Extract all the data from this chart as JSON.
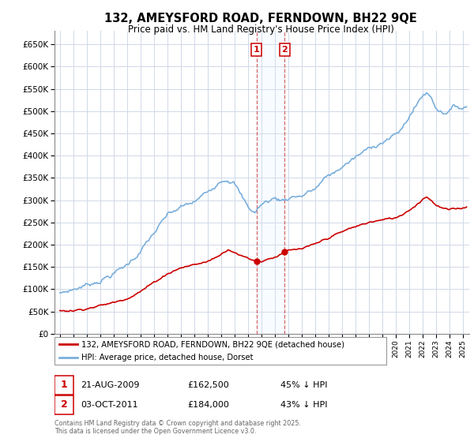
{
  "title": "132, AMEYSFORD ROAD, FERNDOWN, BH22 9QE",
  "subtitle": "Price paid vs. HM Land Registry's House Price Index (HPI)",
  "ylim": [
    0,
    680000
  ],
  "yticks": [
    0,
    50000,
    100000,
    150000,
    200000,
    250000,
    300000,
    350000,
    400000,
    450000,
    500000,
    550000,
    600000,
    650000
  ],
  "background_color": "#ffffff",
  "plot_bg_color": "#ffffff",
  "grid_color": "#d0d8e8",
  "sale1_date": "21-AUG-2009",
  "sale1_price": 162500,
  "sale1_pct": "45% ↓ HPI",
  "sale2_date": "03-OCT-2011",
  "sale2_price": 184000,
  "sale2_pct": "43% ↓ HPI",
  "legend_house": "132, AMEYSFORD ROAD, FERNDOWN, BH22 9QE (detached house)",
  "legend_hpi": "HPI: Average price, detached house, Dorset",
  "copyright": "Contains HM Land Registry data © Crown copyright and database right 2025.\nThis data is licensed under the Open Government Licence v3.0.",
  "house_color": "#cc0000",
  "hpi_color": "#7aafdc",
  "sale1_x": 2009.64,
  "sale2_x": 2011.75,
  "vline_color": "#cc4444",
  "span_color": "#ddeeff",
  "label_color": "#cc0000",
  "box_border_color": "#cc0000"
}
